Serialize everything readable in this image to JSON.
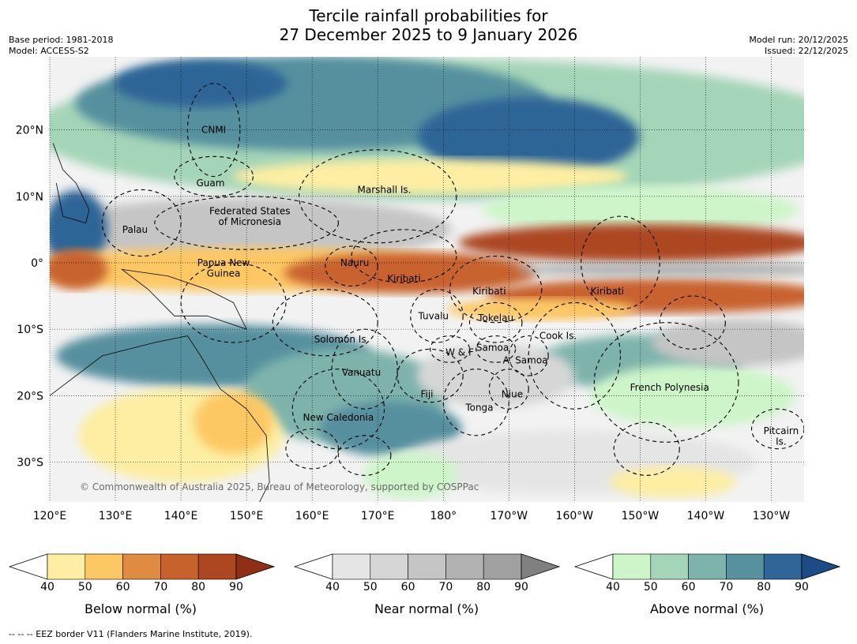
{
  "header": {
    "title_line1": "Tercile rainfall probabilities for",
    "title_line2": "27 December 2025 to 9 January 2026",
    "base_period": "Base period: 1981-2018",
    "model": "Model: ACCESS-S2",
    "model_run": "Model run: 20/12/2025",
    "issued": "Issued: 22/12/2025"
  },
  "map": {
    "lon_range": [
      120,
      235
    ],
    "lat_range": [
      -36,
      31
    ],
    "lat_ticks": [
      {
        "value": 20,
        "label": "20°N"
      },
      {
        "value": 10,
        "label": "10°N"
      },
      {
        "value": 0,
        "label": "0°"
      },
      {
        "value": -10,
        "label": "10°S"
      },
      {
        "value": -20,
        "label": "20°S"
      },
      {
        "value": -30,
        "label": "30°S"
      }
    ],
    "lon_ticks": [
      {
        "value": 120,
        "label": "120°E"
      },
      {
        "value": 130,
        "label": "130°E"
      },
      {
        "value": 140,
        "label": "140°E"
      },
      {
        "value": 150,
        "label": "150°E"
      },
      {
        "value": 160,
        "label": "160°E"
      },
      {
        "value": 170,
        "label": "170°E"
      },
      {
        "value": 180,
        "label": "180°"
      },
      {
        "value": 190,
        "label": "170°W"
      },
      {
        "value": 200,
        "label": "160°W"
      },
      {
        "value": 210,
        "label": "150°W"
      },
      {
        "value": 220,
        "label": "140°W"
      },
      {
        "value": 230,
        "label": "130°W"
      }
    ],
    "region_labels": [
      {
        "name": "CNMI",
        "lon": 145,
        "lat": 20
      },
      {
        "name": "Guam",
        "lon": 144.5,
        "lat": 12
      },
      {
        "name": "Marshall Is.",
        "lon": 171,
        "lat": 11
      },
      {
        "name": "Federated States",
        "lon": 150.5,
        "lat": 7.8
      },
      {
        "name": "of Micronesia",
        "lon": 150.5,
        "lat": 6.2
      },
      {
        "name": "Palau",
        "lon": 133,
        "lat": 5
      },
      {
        "name": "Nauru",
        "lon": 166.5,
        "lat": 0
      },
      {
        "name": "Papua New",
        "lon": 146.5,
        "lat": 0
      },
      {
        "name": "Guinea",
        "lon": 146.5,
        "lat": -1.6
      },
      {
        "name": "Kiribati",
        "lon": 174,
        "lat": -2.4
      },
      {
        "name": "Kiribati",
        "lon": 187,
        "lat": -4.3
      },
      {
        "name": "Kiribati",
        "lon": 205,
        "lat": -4.3
      },
      {
        "name": "Tuvalu",
        "lon": 178.5,
        "lat": -8
      },
      {
        "name": "Tokelau",
        "lon": 188,
        "lat": -8.3
      },
      {
        "name": "Solomon Is.",
        "lon": 164.5,
        "lat": -11.5
      },
      {
        "name": "Cook Is.",
        "lon": 197.5,
        "lat": -11
      },
      {
        "name": "W & F",
        "lon": 182.5,
        "lat": -13.5
      },
      {
        "name": "Samoa",
        "lon": 187.5,
        "lat": -12.8
      },
      {
        "name": "A. Samoa",
        "lon": 192.5,
        "lat": -14.7
      },
      {
        "name": "Vanuatu",
        "lon": 167.5,
        "lat": -16.5
      },
      {
        "name": "Fiji",
        "lon": 177.5,
        "lat": -19.8
      },
      {
        "name": "Niue",
        "lon": 190.5,
        "lat": -19.8
      },
      {
        "name": "French Polynesia",
        "lon": 214.5,
        "lat": -18.8
      },
      {
        "name": "Tonga",
        "lon": 185.5,
        "lat": -21.8
      },
      {
        "name": "New Caledonia",
        "lon": 164,
        "lat": -23.3
      },
      {
        "name": "Pitcairn",
        "lon": 231.5,
        "lat": -25.3
      },
      {
        "name": "Is.",
        "lon": 231.5,
        "lat": -26.9
      }
    ],
    "copyright": "© Commonwealth of Australia 2025, Bureau of Meteorology, supported by COSPPac"
  },
  "legend": {
    "ticks": [
      "40",
      "50",
      "60",
      "70",
      "80",
      "90"
    ],
    "below": {
      "label": "Below normal (%)",
      "colors": [
        "#ffffff",
        "#fdeea3",
        "#fdc863",
        "#df8c42",
        "#c8622d",
        "#ac4722",
        "#8f2f17"
      ]
    },
    "near": {
      "label": "Near normal (%)",
      "colors": [
        "#ffffff",
        "#e5e5e5",
        "#d6d6d6",
        "#c5c5c5",
        "#b2b2b2",
        "#a0a0a0",
        "#808080"
      ]
    },
    "above": {
      "label": "Above normal (%)",
      "colors": [
        "#ffffff",
        "#cdf5c9",
        "#a5d5b8",
        "#7eb3ac",
        "#57909f",
        "#2f6597",
        "#1d4b86"
      ]
    }
  },
  "footnote": "--  --  -- EEZ border V11 (Flanders Marine Institute, 2019)."
}
